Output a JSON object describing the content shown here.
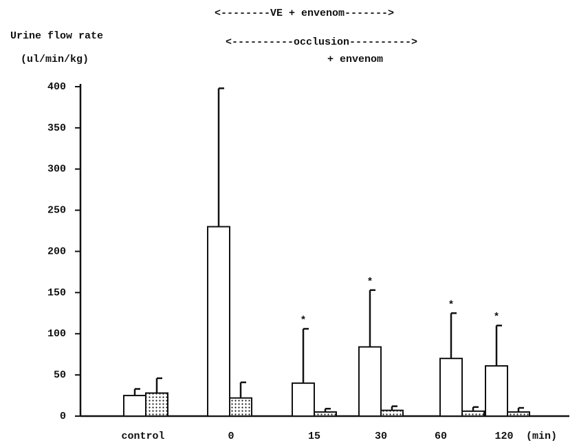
{
  "chart_data": {
    "type": "bar",
    "y_label": [
      "Urine flow rate",
      "(ul/min/kg)"
    ],
    "x_unit": "(min)",
    "annotations": [
      "<--------VE + envenom------->",
      "<----------occlusion---------->",
      "+ envenom"
    ],
    "categories": [
      "control",
      "0",
      "15",
      "30",
      "60",
      "120"
    ],
    "series": [
      {
        "color": "#ffffff",
        "fill": "open",
        "values": [
          25,
          230,
          40,
          84,
          70,
          61
        ],
        "errors": [
          8,
          168,
          66,
          69,
          55,
          49
        ],
        "value_labels": [
          null,
          null,
          "*",
          "*",
          "*",
          "*"
        ]
      },
      {
        "color": "#ffffff",
        "fill": "dotted",
        "values": [
          28,
          22,
          5,
          7,
          6,
          5
        ],
        "errors": [
          18,
          19,
          4,
          5,
          5,
          5
        ]
      }
    ],
    "ylim": [
      0,
      400
    ],
    "yticks": [
      0,
      50,
      100,
      150,
      200,
      250,
      300,
      350,
      400
    ]
  }
}
